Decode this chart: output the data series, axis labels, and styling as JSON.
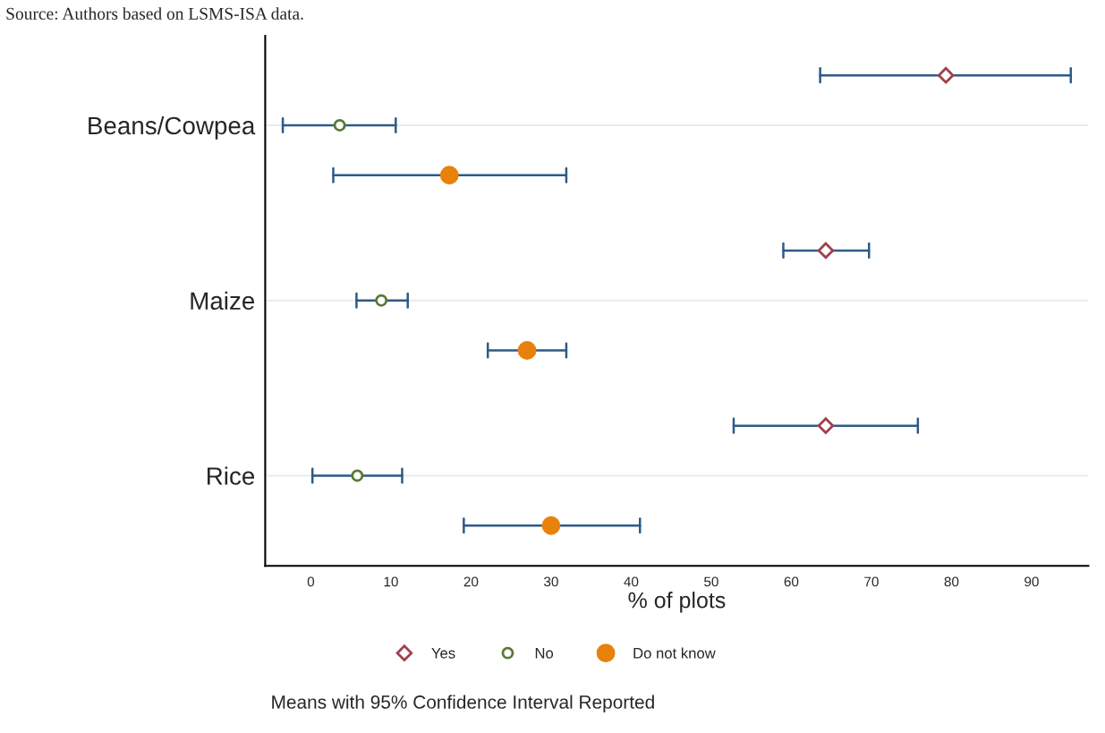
{
  "chart_data": {
    "type": "scatter",
    "orientation": "horizontal",
    "xlabel": "% of plots",
    "categories": [
      "Beans/Cowpea",
      "Maize",
      "Rice"
    ],
    "series": [
      {
        "name": "Yes",
        "color": "#a0404c",
        "marker": "diamond",
        "values": [
          79.3,
          64.3,
          64.3
        ],
        "errors": [
          [
            63.6,
            94.9
          ],
          [
            59.0,
            69.7
          ],
          [
            52.8,
            75.8
          ]
        ]
      },
      {
        "name": "No",
        "color": "#5a7a34",
        "marker": "circle",
        "values": [
          3.6,
          8.8,
          5.8
        ],
        "errors": [
          [
            -3.5,
            10.6
          ],
          [
            5.7,
            12.1
          ],
          [
            0.2,
            11.4
          ]
        ]
      },
      {
        "name": "Do not know",
        "color": "#e8820c",
        "marker": "circle",
        "values": [
          17.3,
          27.0,
          30.0
        ],
        "errors": [
          [
            2.8,
            31.9
          ],
          [
            22.1,
            31.9
          ],
          [
            19.1,
            41.1
          ]
        ]
      }
    ],
    "xlim": [
      -5.7,
      97.1
    ],
    "xticks": [
      0,
      10,
      20,
      30,
      40,
      50,
      60,
      70,
      80,
      90
    ],
    "grid": "y",
    "legend": "bottom",
    "annotations": [
      "Source: Authors based on LSMS-ISA data.",
      "Means with 95% Confidence Interval Reported"
    ]
  }
}
